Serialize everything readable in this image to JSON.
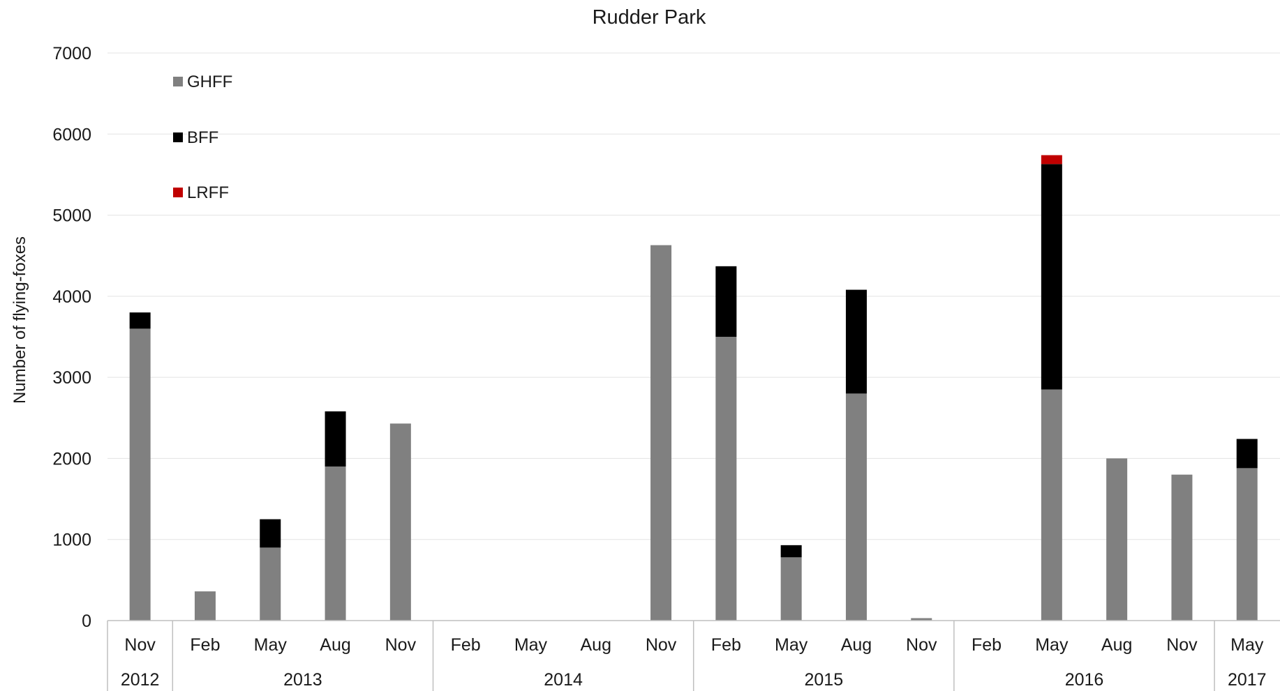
{
  "chart_data": {
    "type": "bar",
    "stacked": true,
    "title": "Rudder Park",
    "xlabel": "",
    "ylabel": "Number of flying-foxes",
    "ylim": [
      0,
      7000
    ],
    "yticks": [
      0,
      1000,
      2000,
      3000,
      4000,
      5000,
      6000,
      7000
    ],
    "grid": true,
    "legend_position": "top-left",
    "categories": [
      "Nov",
      "Feb",
      "May",
      "Aug",
      "Nov",
      "Feb",
      "May",
      "Aug",
      "Nov",
      "Feb",
      "May",
      "Aug",
      "Nov",
      "Feb",
      "May",
      "Aug",
      "Nov",
      "May"
    ],
    "year_groups": [
      {
        "label": "2012",
        "count": 1
      },
      {
        "label": "2013",
        "count": 4
      },
      {
        "label": "2014",
        "count": 4
      },
      {
        "label": "2015",
        "count": 4
      },
      {
        "label": "2016",
        "count": 4
      },
      {
        "label": "2017",
        "count": 1
      }
    ],
    "series": [
      {
        "name": "GHFF",
        "color": "#808080",
        "values": [
          3600,
          360,
          900,
          1900,
          2430,
          0,
          0,
          0,
          4630,
          3500,
          780,
          2800,
          30,
          0,
          2850,
          2000,
          1800,
          1880
        ]
      },
      {
        "name": "BFF",
        "color": "#000000",
        "values": [
          200,
          0,
          350,
          680,
          0,
          0,
          0,
          0,
          0,
          870,
          150,
          1280,
          0,
          0,
          2780,
          0,
          0,
          360
        ]
      },
      {
        "name": "LRFF",
        "color": "#c00000",
        "values": [
          0,
          0,
          0,
          0,
          0,
          0,
          0,
          0,
          0,
          0,
          0,
          0,
          0,
          0,
          110,
          0,
          0,
          0
        ]
      }
    ]
  }
}
